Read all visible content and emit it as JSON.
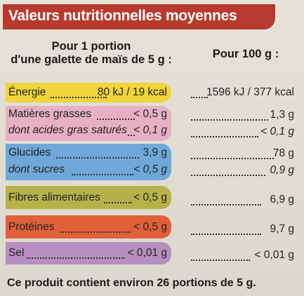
{
  "title": "Valeurs nutritionnelles moyennes",
  "columns": {
    "portion": [
      "Pour 1 portion",
      "d'une galette de maïs de 5 g :"
    ],
    "per100": "Pour 100 g :"
  },
  "rows": [
    {
      "label": "Énergie",
      "portion": "80 kJ / 19 kcal",
      "per100": "1596 kJ / 377 kcal"
    },
    {
      "label": "Matières grasses",
      "portion": "< 0,5 g",
      "per100": "1,3 g"
    },
    {
      "label": "dont acides gras saturés",
      "portion": "< 0,1 g",
      "per100": "< 0,1 g"
    },
    {
      "label": "Glucides",
      "portion": "3,9 g",
      "per100": "78 g"
    },
    {
      "label": "dont sucres",
      "portion": "< 0,5 g",
      "per100": "0,9 g"
    },
    {
      "label": "Fibres alimentaires",
      "portion": "< 0,5 g",
      "per100": "6,9 g"
    },
    {
      "label": "Protéines",
      "portion": "< 0,5 g",
      "per100": "9,7 g"
    },
    {
      "label": "Sel",
      "portion": "< 0,01 g",
      "per100": "< 0,01 g"
    }
  ],
  "footer": "Ce produit contient environ 26 portions de 5 g.",
  "colors": {
    "header": "#b83a2e",
    "energie": "#f0d43a",
    "graisses": "#e8b0c4",
    "glucides": "#6fa8d8",
    "fibres": "#b6b24a",
    "proteines": "#e0603a",
    "sel": "#b88ec0"
  }
}
